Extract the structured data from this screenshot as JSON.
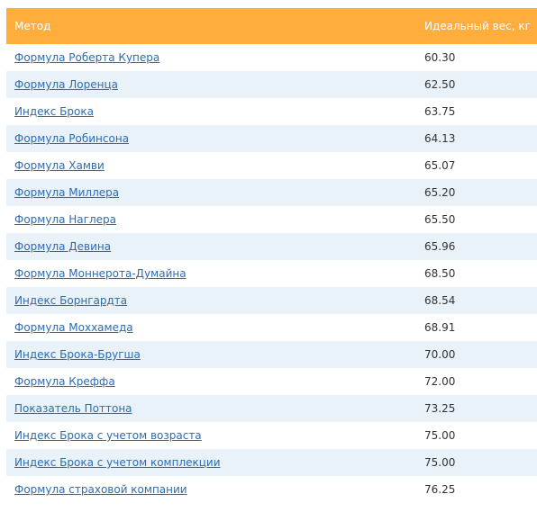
{
  "table": {
    "header": {
      "method": "Метод",
      "value": "Идеальный вес, кг"
    },
    "rows": [
      {
        "method": "Формула Роберта Купера",
        "value": "60.30"
      },
      {
        "method": "Формула Лоренца",
        "value": "62.50"
      },
      {
        "method": "Индекс Брока",
        "value": "63.75"
      },
      {
        "method": "Формула Робинсона",
        "value": "64.13"
      },
      {
        "method": "Формула Хамви",
        "value": "65.07"
      },
      {
        "method": "Формула Миллера",
        "value": "65.20"
      },
      {
        "method": "Формула Наглера",
        "value": "65.50"
      },
      {
        "method": "Формула Девина",
        "value": "65.96"
      },
      {
        "method": "Формула Моннерота-Думайна",
        "value": "68.50"
      },
      {
        "method": "Индекс Борнгардта",
        "value": "68.54"
      },
      {
        "method": "Формула Моххамеда",
        "value": "68.91"
      },
      {
        "method": "Индекс Брока-Бругша",
        "value": "70.00"
      },
      {
        "method": "Формула Креффа",
        "value": "72.00"
      },
      {
        "method": "Показатель Поттона",
        "value": "73.25"
      },
      {
        "method": "Индекс Брока с учетом возраста",
        "value": "75.00"
      },
      {
        "method": "Индекс Брока с учетом комплекции",
        "value": "75.00"
      },
      {
        "method": "Формула страховой компании",
        "value": "76.25"
      }
    ]
  },
  "colors": {
    "header_bg": "#ffad3c",
    "header_text": "#ffffff",
    "row_alt_bg": "#eaf2f9",
    "link": "#2b6cb3",
    "value_text": "#333333"
  }
}
